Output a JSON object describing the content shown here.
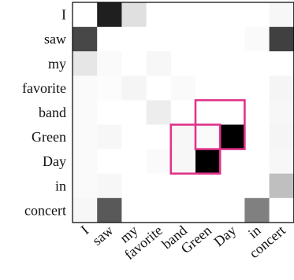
{
  "chart_data": {
    "type": "heatmap",
    "title": "",
    "xlabel": "",
    "ylabel": "",
    "grid": false,
    "colormap": "white-to-black",
    "row_labels": [
      "I",
      "saw",
      "my",
      "favorite",
      "band",
      "Green",
      "Day",
      "in",
      "concert"
    ],
    "col_labels": [
      "I",
      "saw",
      "my",
      "favorite",
      "band",
      "Green",
      "Day",
      "in",
      "concert"
    ],
    "values": [
      [
        0.0,
        0.88,
        0.12,
        0.0,
        0.0,
        0.0,
        0.0,
        0.0,
        0.03
      ],
      [
        0.72,
        0.0,
        0.0,
        0.0,
        0.0,
        0.0,
        0.0,
        0.02,
        0.75
      ],
      [
        0.1,
        0.02,
        0.0,
        0.03,
        0.0,
        0.0,
        0.0,
        0.0,
        0.0
      ],
      [
        0.02,
        0.01,
        0.04,
        0.0,
        0.02,
        0.0,
        0.0,
        0.0,
        0.04
      ],
      [
        0.02,
        0.0,
        0.0,
        0.07,
        0.0,
        0.0,
        0.0,
        0.0,
        0.03
      ],
      [
        0.02,
        0.03,
        0.0,
        0.0,
        0.03,
        0.02,
        1.0,
        0.0,
        0.04
      ],
      [
        0.02,
        0.0,
        0.0,
        0.02,
        0.03,
        1.0,
        0.0,
        0.0,
        0.03
      ],
      [
        0.02,
        0.03,
        0.0,
        0.0,
        0.0,
        0.0,
        0.0,
        0.0,
        0.25
      ],
      [
        0.03,
        0.65,
        0.0,
        0.0,
        0.0,
        0.0,
        0.0,
        0.5,
        0.0
      ]
    ],
    "highlight_color": "#e0338b",
    "highlights": [
      {
        "rows": [
          4,
          5
        ],
        "cols": [
          5,
          6
        ]
      },
      {
        "rows": [
          5,
          6
        ],
        "cols": [
          4,
          5
        ]
      }
    ]
  }
}
